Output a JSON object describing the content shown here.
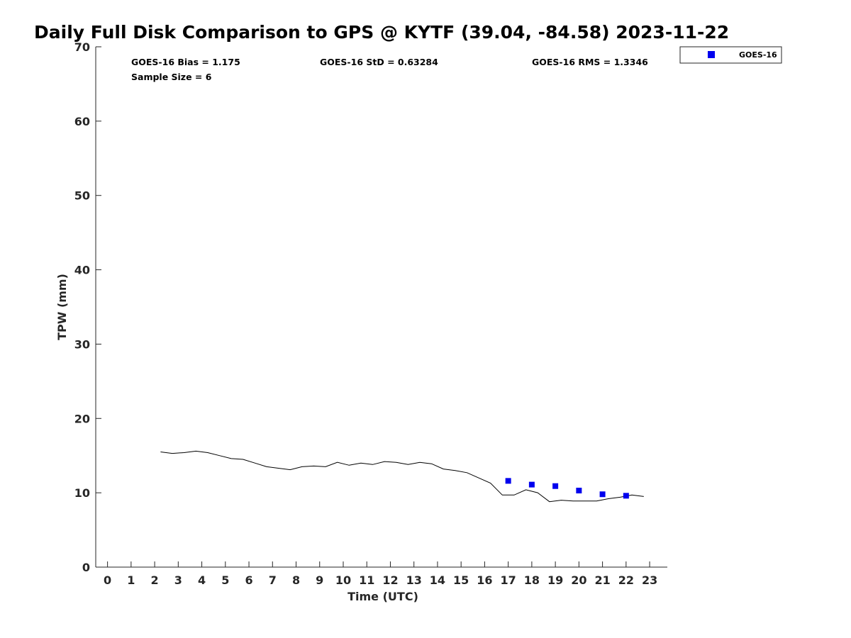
{
  "chart_data": {
    "type": "line",
    "title": "Daily Full Disk Comparison to GPS @ KYTF (39.04, -84.58) 2023-11-22",
    "xlabel": "Time (UTC)",
    "ylabel": "TPW (mm)",
    "xlim": [
      -0.5,
      23.75
    ],
    "ylim": [
      0,
      70
    ],
    "x_ticks": [
      0,
      1,
      2,
      3,
      4,
      5,
      6,
      7,
      8,
      9,
      10,
      11,
      12,
      13,
      14,
      15,
      16,
      17,
      18,
      19,
      20,
      21,
      22,
      23
    ],
    "y_ticks": [
      0,
      10,
      20,
      30,
      40,
      50,
      60,
      70
    ],
    "grid": false,
    "legend_position": "top-right (outside plot)",
    "stats": {
      "bias": "GOES-16 Bias = 1.175",
      "std": "GOES-16 StD = 0.63284",
      "rms": "GOES-16 RMS = 1.3346",
      "sample_size": "Sample Size = 6"
    },
    "series": [
      {
        "kind": "line",
        "color": "#000000",
        "x": [
          2.25,
          2.75,
          3.25,
          3.75,
          4.25,
          4.75,
          5.25,
          5.75,
          6.25,
          6.75,
          7.25,
          7.75,
          8.25,
          8.75,
          9.25,
          9.75,
          10.25,
          10.75,
          11.25,
          11.75,
          12.25,
          12.75,
          13.25,
          13.75,
          14.25,
          14.75,
          15.25,
          15.75,
          16.25,
          16.75,
          17.25,
          17.75,
          18.25,
          18.75,
          19.25,
          19.75,
          20.25,
          20.75,
          21.25,
          21.75,
          22.25,
          22.75
        ],
        "y": [
          15.5,
          15.3,
          15.4,
          15.6,
          15.4,
          15.0,
          14.6,
          14.5,
          14.0,
          13.5,
          13.3,
          13.1,
          13.5,
          13.6,
          13.5,
          14.1,
          13.7,
          14.0,
          13.8,
          14.2,
          14.1,
          13.8,
          14.1,
          13.9,
          13.2,
          13.0,
          12.7,
          12.0,
          11.3,
          9.7,
          9.7,
          10.4,
          10.0,
          8.8,
          9.0,
          8.9,
          8.9,
          8.9,
          9.2,
          9.4,
          9.7,
          9.5
        ]
      },
      {
        "name": "GOES-16",
        "kind": "scatter",
        "marker": "square",
        "color": "#0000ee",
        "x": [
          17,
          18,
          19,
          20,
          21,
          22
        ],
        "y": [
          11.6,
          11.1,
          10.9,
          10.3,
          9.8,
          9.6
        ]
      }
    ]
  }
}
